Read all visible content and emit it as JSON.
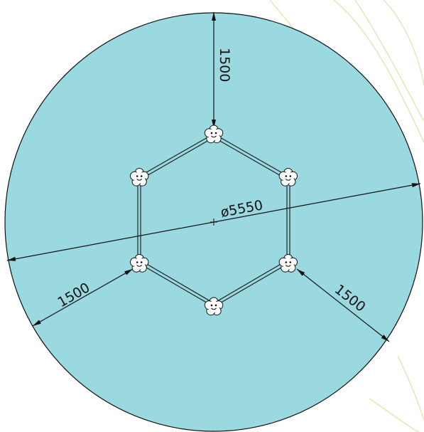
{
  "colors": {
    "area_fill": "#9bd9e1",
    "line": "#111111",
    "background_sketch": "#e9e4b8"
  },
  "dimensions": {
    "diameter_label": "ø5550",
    "top_label": "1500",
    "bottom_left_label": "1500",
    "bottom_right_label": "1500"
  },
  "posts": {
    "count": 6,
    "icon": "flower-face-icon"
  }
}
